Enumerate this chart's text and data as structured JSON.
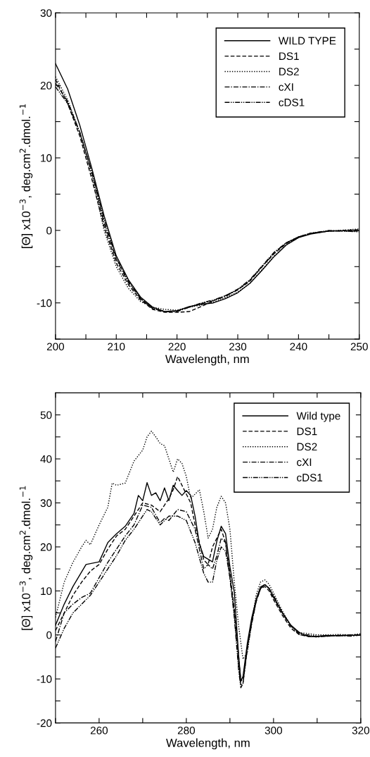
{
  "chart_data": [
    {
      "type": "line",
      "xlabel": "Wavelength, nm",
      "ylabel": "[Θ] x10$^{−3}$, deg.cm$^{2}$.dmol.$^{−1}$",
      "legend": "top right",
      "grid": false,
      "xlim": [
        200,
        250
      ],
      "xticks": [
        200,
        {
          "value": 205,
          "label": null
        },
        210,
        {
          "value": 215,
          "label": null
        },
        220,
        {
          "value": 225,
          "label": null
        },
        230,
        {
          "value": 235,
          "label": null
        },
        240,
        {
          "value": 245,
          "label": null
        },
        250
      ],
      "ylim": [
        -15,
        30
      ],
      "yticks": [
        {
          "value": -15,
          "label": null
        },
        -10,
        {
          "value": -5,
          "label": null
        },
        0,
        {
          "value": 5,
          "label": null
        },
        10,
        {
          "value": 15,
          "label": null
        },
        20,
        {
          "value": 25,
          "label": null
        },
        30
      ],
      "x": [
        200,
        202,
        204,
        206,
        208,
        210,
        212,
        214,
        216,
        218,
        220,
        222,
        224,
        226,
        228,
        230,
        232,
        234,
        236,
        238,
        240,
        242,
        245,
        250
      ],
      "series": [
        {
          "name": "WILD TYPE",
          "color": "#000000",
          "line_style": "solid",
          "values": [
            23,
            19.5,
            14.5,
            8.5,
            2,
            -3.5,
            -6.8,
            -9.2,
            -10.6,
            -11.2,
            -11.1,
            -10.5,
            -10.2,
            -10.0,
            -9.4,
            -8.6,
            -7.3,
            -5.5,
            -3.6,
            -2.0,
            -1.0,
            -0.5,
            -0.1,
            0
          ]
        },
        {
          "name": "DS1",
          "color": "#000000",
          "line_style": "dashed",
          "values": [
            20.8,
            17.5,
            13,
            7,
            0.5,
            -4.5,
            -7.5,
            -9.6,
            -10.9,
            -11.3,
            -11.3,
            -11.2,
            -10.5,
            -9.7,
            -9.0,
            -8.2,
            -7.0,
            -5.0,
            -3.2,
            -1.8,
            -0.9,
            -0.4,
            -0.1,
            0.1
          ]
        },
        {
          "name": "DS2",
          "color": "#000000",
          "line_style": "dotted",
          "values": [
            21.2,
            18,
            13.5,
            7.5,
            0,
            -5,
            -8,
            -9.8,
            -10.6,
            -10.9,
            -11.0,
            -10.6,
            -10.3,
            -9.9,
            -9.3,
            -8.5,
            -7.3,
            -5.4,
            -3.5,
            -2.0,
            -1.0,
            -0.4,
            -0.1,
            0.2
          ]
        },
        {
          "name": "cXI",
          "color": "#000000",
          "line_style": "dashdot",
          "values": [
            20.3,
            17.8,
            13.5,
            8,
            1,
            -4,
            -7.2,
            -9.4,
            -10.8,
            -11.2,
            -11.2,
            -10.6,
            -10.1,
            -9.7,
            -9.1,
            -8.2,
            -6.9,
            -5.0,
            -3.1,
            -1.7,
            -0.9,
            -0.4,
            -0.1,
            -0.1
          ]
        },
        {
          "name": "cDS1",
          "color": "#000000",
          "line_style": "dashdotdot",
          "values": [
            19.8,
            17.5,
            13.5,
            8,
            1.5,
            -3.8,
            -7,
            -9.4,
            -10.7,
            -11.2,
            -11.1,
            -10.6,
            -10.0,
            -9.6,
            -9.0,
            -8.1,
            -6.8,
            -4.9,
            -3.0,
            -1.7,
            -0.9,
            -0.4,
            0,
            -0.2
          ]
        }
      ]
    },
    {
      "type": "line",
      "xlabel": "Wavelength, nm",
      "ylabel": "[Θ] x10$^{−3}$, deg.cm$^{2}$.dmol.$^{−1}$",
      "legend": "top right",
      "grid": false,
      "xlim": [
        250,
        320
      ],
      "xticks": [
        {
          "value": 250,
          "label": null
        },
        260,
        {
          "value": 270,
          "label": null
        },
        280,
        {
          "value": 290,
          "label": null
        },
        300,
        {
          "value": 310,
          "label": null
        },
        320
      ],
      "ylim": [
        -20,
        55
      ],
      "yticks": [
        -20,
        {
          "value": -15,
          "label": null
        },
        -10,
        {
          "value": -5,
          "label": null
        },
        0,
        {
          "value": 5,
          "label": null
        },
        10,
        {
          "value": 15,
          "label": null
        },
        20,
        {
          "value": 25,
          "label": null
        },
        30,
        {
          "value": 35,
          "label": null
        },
        40,
        {
          "value": 45,
          "label": null
        },
        50,
        {
          "value": 55,
          "label": null
        }
      ],
      "series": [
        {
          "name": "Wild type",
          "color": "#000000",
          "line_style": "solid",
          "x": [
            250,
            252,
            254,
            257,
            260,
            262,
            264,
            266,
            268,
            269,
            270,
            271,
            272,
            273,
            274,
            275,
            276,
            277,
            278,
            279,
            280,
            281,
            282,
            283,
            284,
            285,
            286,
            287,
            288,
            289,
            290,
            291,
            292,
            292.5,
            293,
            294,
            295,
            296,
            297,
            298,
            299,
            300,
            302,
            304,
            306,
            308,
            310,
            312,
            315,
            318,
            320
          ],
          "values": [
            2.2,
            7,
            11,
            16,
            16.6,
            21,
            23,
            24.7,
            27.6,
            31.7,
            30.5,
            34.6,
            31.7,
            32.3,
            30.5,
            33.4,
            30.5,
            34,
            32.8,
            31.7,
            32.8,
            31.7,
            27,
            20.7,
            17.8,
            17.2,
            16.6,
            21.3,
            24.7,
            23,
            15.5,
            9.7,
            -4.7,
            -10.5,
            -9.4,
            -1.8,
            3.9,
            8,
            10.9,
            11.4,
            10.6,
            8.6,
            5.1,
            2.2,
            0.5,
            -0.4,
            -0.4,
            -0.1,
            -0.2,
            -0.1,
            0
          ]
        },
        {
          "name": "DS1",
          "color": "#000000",
          "line_style": "dashed",
          "x": [
            250,
            252,
            254,
            256,
            258,
            260,
            262,
            264,
            266,
            268,
            270,
            272,
            274,
            276,
            277,
            278,
            279,
            280,
            281,
            282,
            284,
            285,
            286,
            287,
            288,
            289,
            290,
            291,
            292,
            292.5,
            293,
            294,
            295,
            296,
            297,
            298,
            299,
            300,
            302,
            304,
            306,
            308,
            310,
            312,
            315,
            318,
            320
          ],
          "values": [
            1,
            5,
            9,
            12,
            14.5,
            16,
            19.5,
            22.5,
            24,
            27,
            30,
            29.5,
            28,
            31,
            33,
            36,
            34,
            32,
            30,
            25,
            17,
            16,
            20,
            22,
            24,
            21,
            14,
            6,
            -5,
            -10.5,
            -10,
            -3,
            3,
            7.5,
            10.5,
            11,
            10,
            8,
            4.5,
            1.5,
            0,
            -0.3,
            -0.3,
            -0.2,
            -0.1,
            0,
            0
          ]
        },
        {
          "name": "DS2",
          "color": "#000000",
          "line_style": "dotted",
          "x": [
            250,
            252,
            254,
            256,
            257,
            258,
            260,
            262,
            263,
            264,
            266,
            268,
            270,
            271,
            272,
            273,
            274,
            275,
            276,
            277,
            278,
            279,
            280,
            281,
            282,
            283,
            284,
            285,
            286,
            287,
            288,
            289,
            290,
            291,
            292,
            293,
            294,
            295,
            296,
            297,
            298,
            299,
            300,
            302,
            304,
            306,
            308,
            310,
            312,
            315,
            318,
            320
          ],
          "values": [
            4,
            12,
            16.5,
            20,
            21.5,
            20.5,
            25,
            29,
            34.5,
            34,
            34.5,
            39.5,
            42,
            45,
            46.3,
            45,
            43.5,
            43,
            40,
            37,
            40,
            39,
            36,
            31,
            32,
            33,
            28,
            22,
            24,
            29,
            31.5,
            30,
            24,
            12,
            2,
            -5.5,
            -4,
            3,
            9,
            12,
            12.5,
            11.5,
            9.5,
            5.5,
            2,
            0.5,
            0.3,
            0,
            0,
            0.1,
            0,
            0.3
          ]
        },
        {
          "name": "cXI",
          "color": "#000000",
          "line_style": "dashdot",
          "x": [
            250,
            252,
            254,
            256,
            258,
            260,
            262,
            264,
            266,
            268,
            270,
            272,
            274,
            275,
            276,
            278,
            280,
            282,
            284,
            285,
            286,
            287,
            288,
            289,
            290,
            291,
            292,
            292.5,
            293,
            294,
            295,
            296,
            297,
            298,
            299,
            300,
            302,
            304,
            306,
            308,
            310,
            312,
            315,
            318,
            320
          ],
          "values": [
            -1.5,
            5,
            7,
            8.5,
            9.5,
            13,
            16.5,
            19.5,
            22.5,
            25,
            29.5,
            29,
            25.5,
            26.5,
            26,
            28.5,
            28,
            24,
            15,
            16,
            15,
            18,
            22,
            21,
            13,
            5,
            -7,
            -11.5,
            -11,
            -3,
            2.5,
            7.5,
            10.5,
            11.5,
            10.5,
            8.5,
            5,
            2,
            0.3,
            -0.2,
            -0.5,
            -0.3,
            -0.1,
            -0.3,
            0
          ]
        },
        {
          "name": "cDS1",
          "color": "#000000",
          "line_style": "dashdotdot",
          "x": [
            250,
            252,
            254,
            256,
            258,
            260,
            262,
            264,
            266,
            268,
            270,
            271,
            272,
            274,
            276,
            278,
            280,
            282,
            284,
            285,
            286,
            287,
            288,
            289,
            290,
            291,
            292,
            292.5,
            293,
            294,
            295,
            296,
            297,
            298,
            299,
            300,
            302,
            304,
            306,
            308,
            310,
            312,
            315,
            318,
            320
          ],
          "values": [
            -3,
            1.5,
            5,
            7,
            9,
            12,
            15,
            18,
            21.5,
            24,
            27,
            28.5,
            28,
            25,
            27,
            27,
            26,
            21,
            14,
            12,
            12,
            17,
            20,
            19,
            13,
            4,
            -8,
            -12,
            -11,
            -3,
            3,
            8,
            10.5,
            11.5,
            10.5,
            9,
            5,
            2,
            0,
            0,
            -0.3,
            -0.3,
            -0.2,
            0,
            0
          ]
        }
      ]
    }
  ]
}
